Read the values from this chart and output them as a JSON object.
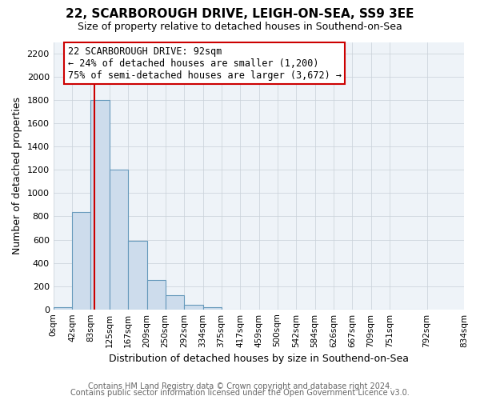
{
  "title": "22, SCARBOROUGH DRIVE, LEIGH-ON-SEA, SS9 3EE",
  "subtitle": "Size of property relative to detached houses in Southend-on-Sea",
  "xlabel": "Distribution of detached houses by size in Southend-on-Sea",
  "ylabel": "Number of detached properties",
  "bar_values": [
    20,
    840,
    1800,
    1200,
    590,
    255,
    120,
    40,
    20,
    0,
    0,
    0,
    0,
    0,
    0,
    0,
    0,
    0,
    0
  ],
  "bar_edges": [
    0,
    42,
    83,
    125,
    167,
    209,
    250,
    292,
    334,
    375,
    417,
    459,
    500,
    542,
    584,
    626,
    667,
    709,
    751,
    834
  ],
  "tick_labels": [
    "0sqm",
    "42sqm",
    "83sqm",
    "125sqm",
    "167sqm",
    "209sqm",
    "250sqm",
    "292sqm",
    "334sqm",
    "375sqm",
    "417sqm",
    "459sqm",
    "500sqm",
    "542sqm",
    "584sqm",
    "626sqm",
    "667sqm",
    "709sqm",
    "751sqm",
    "792sqm",
    "834sqm"
  ],
  "bar_color": "#cddcec",
  "bar_edge_color": "#6699bb",
  "property_line_x": 92,
  "property_line_color": "#cc0000",
  "ylim": [
    0,
    2300
  ],
  "yticks": [
    0,
    200,
    400,
    600,
    800,
    1000,
    1200,
    1400,
    1600,
    1800,
    2000,
    2200
  ],
  "annotation_title": "22 SCARBOROUGH DRIVE: 92sqm",
  "annotation_line1": "← 24% of detached houses are smaller (1,200)",
  "annotation_line2": "75% of semi-detached houses are larger (3,672) →",
  "footer1": "Contains HM Land Registry data © Crown copyright and database right 2024.",
  "footer2": "Contains public sector information licensed under the Open Government Licence v3.0.",
  "bg_color": "#ffffff",
  "plot_bg_color": "#eef3f8",
  "grid_color": "#c8d0d8",
  "title_fontsize": 11,
  "subtitle_fontsize": 9,
  "ylabel_fontsize": 9,
  "xlabel_fontsize": 9,
  "tick_fontsize": 7.5,
  "annotation_fontsize": 8.5,
  "footer_fontsize": 7
}
